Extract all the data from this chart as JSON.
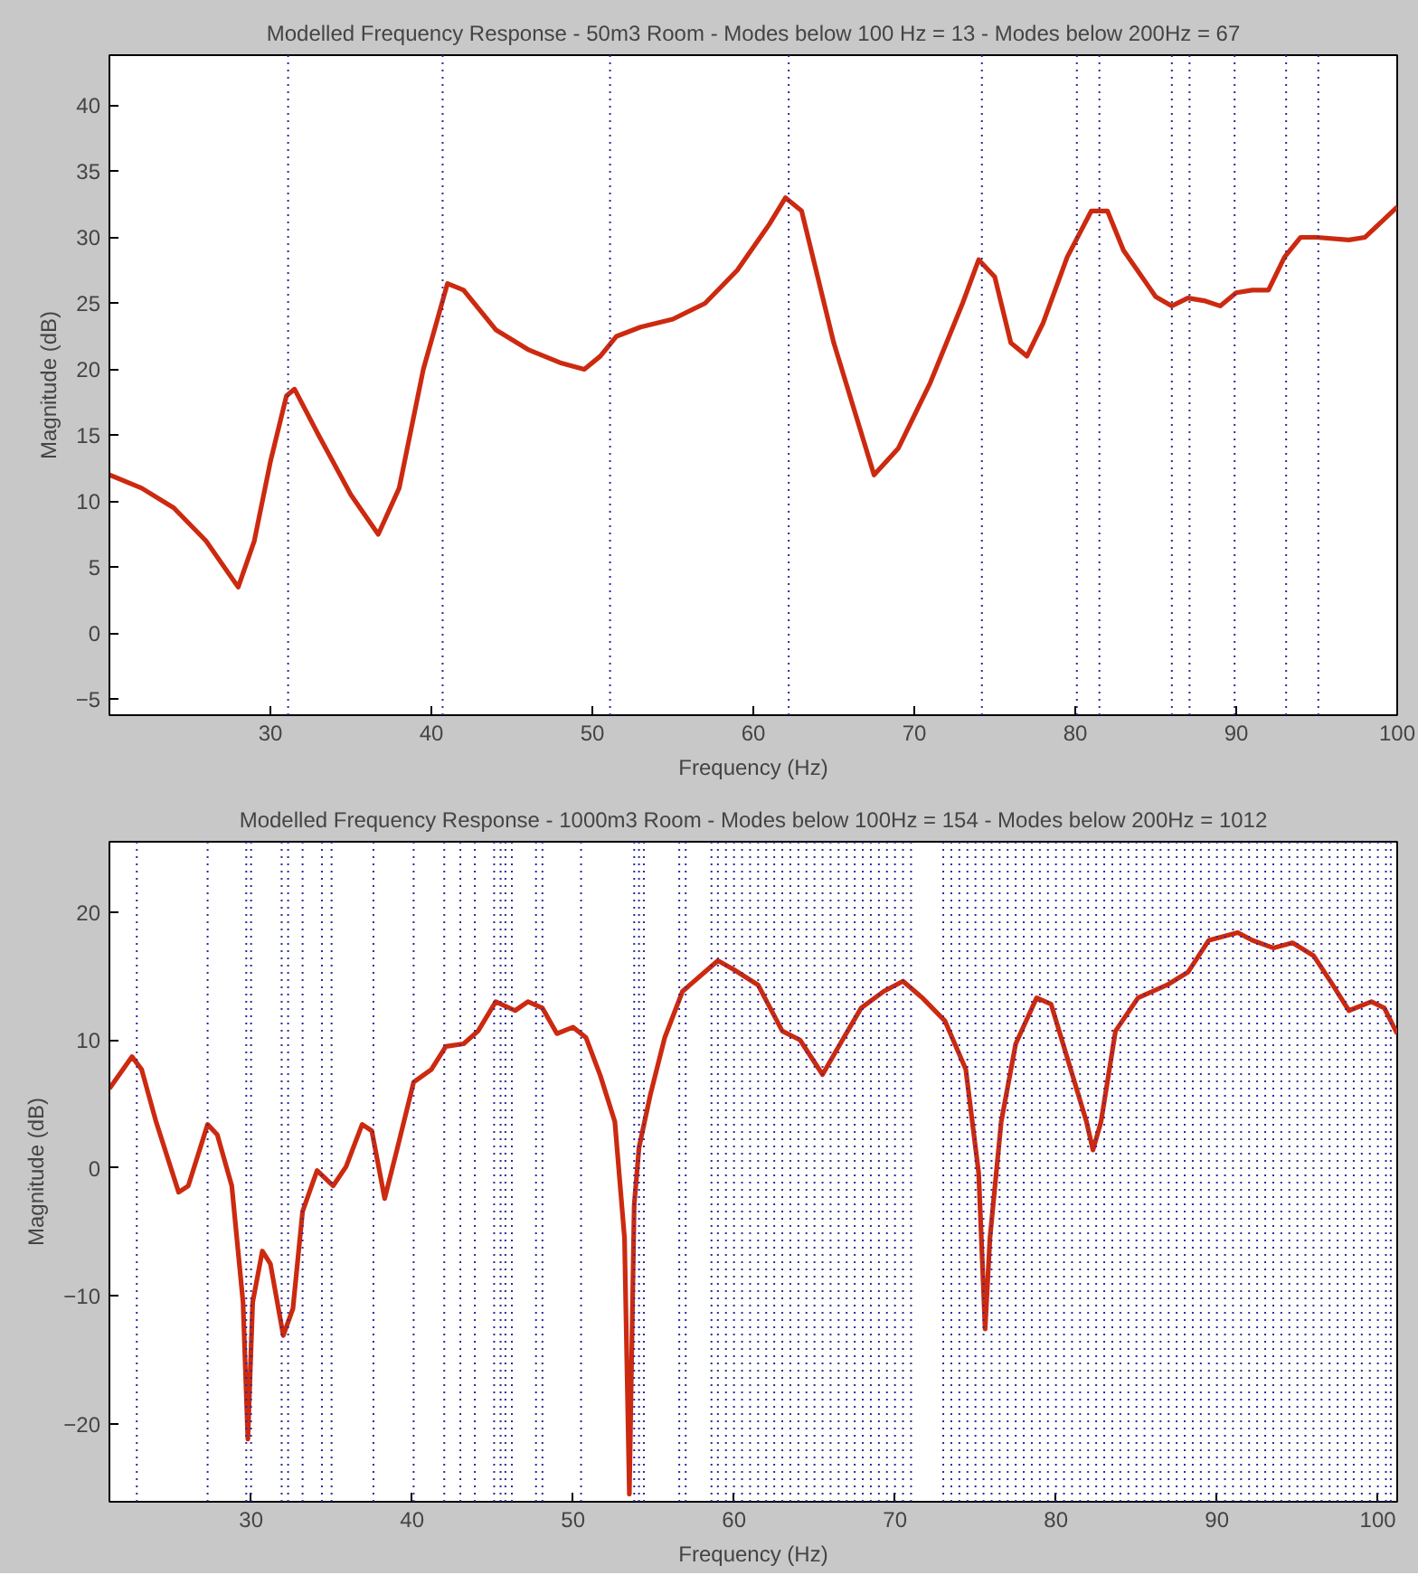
{
  "chart_data": [
    {
      "type": "line",
      "title": "Modelled Frequency Response - 50m3 Room - Modes below 100 Hz = 13 - Modes below 200Hz = 67",
      "xlabel": "Frequency (Hz)",
      "ylabel": "Magnitude (dB)",
      "grid": false,
      "line_style": "solid",
      "x": [
        20,
        22,
        24,
        26,
        28,
        29,
        30,
        31,
        31.5,
        33,
        35,
        36.7,
        38,
        39.5,
        41,
        42,
        44,
        46,
        48,
        49.5,
        50.5,
        51.5,
        53,
        55,
        57,
        59,
        61,
        62,
        63,
        65,
        67.5,
        69,
        71,
        73,
        74,
        75,
        76,
        77,
        78,
        79.5,
        81,
        82,
        83,
        85,
        86,
        87,
        88,
        89,
        90,
        91,
        92,
        93,
        94,
        95,
        97,
        98,
        100
      ],
      "series": [
        {
          "color": "#cc2a10",
          "values": [
            12,
            11,
            9.5,
            7,
            3.5,
            7,
            13,
            18,
            18.5,
            15,
            10.5,
            7.5,
            11,
            20,
            26.5,
            26,
            23,
            21.5,
            20.5,
            20,
            21,
            22.5,
            23.2,
            23.8,
            25,
            27.5,
            31,
            33,
            32,
            22,
            12,
            14,
            19,
            25,
            28.3,
            27,
            22,
            21,
            23.5,
            28.5,
            32,
            32,
            29,
            25.5,
            24.8,
            25.4,
            25.2,
            24.8,
            25.8,
            26,
            26,
            28.5,
            30,
            30,
            29.8,
            30,
            32.3
          ]
        }
      ],
      "xlim": [
        20,
        100
      ],
      "xticks": [
        30,
        40,
        50,
        60,
        70,
        80,
        90,
        100
      ],
      "ylim": [
        -6.2,
        43.8
      ],
      "yticks": [
        -5,
        0,
        5,
        10,
        15,
        20,
        25,
        30,
        35,
        40
      ],
      "ref_lines": [
        {
          "axis": "x",
          "value": 31.1,
          "color": "#2a2a9a",
          "line_style": "dotted"
        },
        {
          "axis": "x",
          "value": 40.7,
          "color": "#2a2a9a",
          "line_style": "dotted"
        },
        {
          "axis": "x",
          "value": 51.1,
          "color": "#2a2a9a",
          "line_style": "dotted"
        },
        {
          "axis": "x",
          "value": 62.2,
          "color": "#2a2a9a",
          "line_style": "dotted"
        },
        {
          "axis": "x",
          "value": 74.2,
          "color": "#2a2a9a",
          "line_style": "dotted"
        },
        {
          "axis": "x",
          "value": 80.1,
          "color": "#2a2a9a",
          "line_style": "dotted"
        },
        {
          "axis": "x",
          "value": 81.5,
          "color": "#2a2a9a",
          "line_style": "dotted"
        },
        {
          "axis": "x",
          "value": 86.0,
          "color": "#2a2a9a",
          "line_style": "dotted"
        },
        {
          "axis": "x",
          "value": 87.1,
          "color": "#2a2a9a",
          "line_style": "dotted"
        },
        {
          "axis": "x",
          "value": 89.9,
          "color": "#2a2a9a",
          "line_style": "dotted"
        },
        {
          "axis": "x",
          "value": 93.1,
          "color": "#2a2a9a",
          "line_style": "dotted"
        },
        {
          "axis": "x",
          "value": 95.1,
          "color": "#2a2a9a",
          "line_style": "dotted"
        }
      ]
    },
    {
      "type": "line",
      "title": "Modelled Frequency Response - 1000m3 Room - Modes below 100Hz = 154 - Modes below 200Hz = 1012",
      "xlabel": "Frequency (Hz)",
      "ylabel": "Magnitude (dB)",
      "grid": false,
      "line_style": "solid",
      "x": [
        21.2,
        22.6,
        23.2,
        24.1,
        25.5,
        26.1,
        27.3,
        27.9,
        28.8,
        29.5,
        29.8,
        30.1,
        30.7,
        31.2,
        32.0,
        32.6,
        33.2,
        34.1,
        35.1,
        35.9,
        36.9,
        37.5,
        38.3,
        39.0,
        40.1,
        41.2,
        42.1,
        43.2,
        44.1,
        45.2,
        46.4,
        47.2,
        48.1,
        49.0,
        50.0,
        50.8,
        51.7,
        52.6,
        53.2,
        53.5,
        53.8,
        54.1,
        54.8,
        55.7,
        56.8,
        57.9,
        59.0,
        60.0,
        61.5,
        63.0,
        64.1,
        65.5,
        66.6,
        67.9,
        69.3,
        70.5,
        71.7,
        73.1,
        74.4,
        75.2,
        75.6,
        75.9,
        76.6,
        77.5,
        78.8,
        79.7,
        80.8,
        81.9,
        82.3,
        82.8,
        83.7,
        85.1,
        86.9,
        88.2,
        89.5,
        91.3,
        92.2,
        93.5,
        94.7,
        96.0,
        97.1,
        98.2,
        99.6,
        100.4,
        101.2
      ],
      "series": [
        {
          "color": "#cc2a10",
          "values": [
            6.2,
            8.7,
            7.7,
            3.6,
            -1.9,
            -1.4,
            3.4,
            2.6,
            -1.4,
            -10.5,
            -21.2,
            -10.5,
            -6.5,
            -7.5,
            -13.1,
            -11,
            -3.4,
            -0.2,
            -1.4,
            0.1,
            3.4,
            2.9,
            -2.4,
            1.1,
            6.7,
            7.7,
            9.5,
            9.7,
            10.7,
            13,
            12.3,
            13,
            12.5,
            10.5,
            11,
            10.2,
            7.2,
            3.6,
            -5.5,
            -25.5,
            -2.9,
            1.6,
            5.7,
            10.2,
            13.8,
            15,
            16.2,
            15.5,
            14.3,
            10.7,
            10,
            7.3,
            9.7,
            12.5,
            13.8,
            14.6,
            13.3,
            11.5,
            7.7,
            -0.4,
            -12.6,
            -5.5,
            3.6,
            9.7,
            13.3,
            12.8,
            8.2,
            3.6,
            1.4,
            3.6,
            10.7,
            13.3,
            14.3,
            15.3,
            17.8,
            18.4,
            17.8,
            17.2,
            17.6,
            16.6,
            14.5,
            12.3,
            13,
            12.5,
            10.5
          ]
        }
      ],
      "xlim": [
        21.2,
        101.2
      ],
      "xticks": [
        30,
        40,
        50,
        60,
        70,
        80,
        90,
        100
      ],
      "ylim": [
        -26.1,
        25.5
      ],
      "yticks": [
        -20,
        -10,
        0,
        10,
        20
      ],
      "ref_lines": [
        {
          "axis": "x",
          "value": 22.9,
          "color": "#2a2a9a",
          "line_style": "dotted"
        },
        {
          "axis": "x",
          "value": 27.3,
          "color": "#2a2a9a",
          "line_style": "dotted"
        },
        {
          "axis": "x",
          "value": 29.7,
          "color": "#2a2a9a",
          "line_style": "dotted"
        },
        {
          "axis": "x",
          "value": 30.0,
          "color": "#2a2a9a",
          "line_style": "dotted"
        },
        {
          "axis": "x",
          "value": 31.9,
          "color": "#2a2a9a",
          "line_style": "dotted"
        },
        {
          "axis": "x",
          "value": 32.3,
          "color": "#2a2a9a",
          "line_style": "dotted"
        },
        {
          "axis": "x",
          "value": 33.2,
          "color": "#2a2a9a",
          "line_style": "dotted"
        },
        {
          "axis": "x",
          "value": 34.4,
          "color": "#2a2a9a",
          "line_style": "dotted"
        },
        {
          "axis": "x",
          "value": 35.0,
          "color": "#2a2a9a",
          "line_style": "dotted"
        },
        {
          "axis": "x",
          "value": 37.6,
          "color": "#2a2a9a",
          "line_style": "dotted"
        },
        {
          "axis": "x",
          "value": 40.1,
          "color": "#2a2a9a",
          "line_style": "dotted"
        },
        {
          "axis": "x",
          "value": 42.0,
          "color": "#2a2a9a",
          "line_style": "dotted"
        },
        {
          "axis": "x",
          "value": 43.0,
          "color": "#2a2a9a",
          "line_style": "dotted"
        },
        {
          "axis": "x",
          "value": 43.9,
          "color": "#2a2a9a",
          "line_style": "dotted"
        },
        {
          "axis": "x",
          "value": 45.1,
          "color": "#2a2a9a",
          "line_style": "dotted"
        },
        {
          "axis": "x",
          "value": 45.5,
          "color": "#2a2a9a",
          "line_style": "dotted"
        },
        {
          "axis": "x",
          "value": 45.8,
          "color": "#2a2a9a",
          "line_style": "dotted"
        },
        {
          "axis": "x",
          "value": 46.2,
          "color": "#2a2a9a",
          "line_style": "dotted"
        },
        {
          "axis": "x",
          "value": 47.7,
          "color": "#2a2a9a",
          "line_style": "dotted"
        },
        {
          "axis": "x",
          "value": 48.1,
          "color": "#2a2a9a",
          "line_style": "dotted"
        },
        {
          "axis": "x",
          "value": 50.5,
          "color": "#2a2a9a",
          "line_style": "dotted"
        },
        {
          "axis": "x",
          "value": 53.8,
          "color": "#2a2a9a",
          "line_style": "dotted"
        },
        {
          "axis": "x",
          "value": 54.1,
          "color": "#2a2a9a",
          "line_style": "dotted"
        },
        {
          "axis": "x",
          "value": 54.4,
          "color": "#2a2a9a",
          "line_style": "dotted"
        },
        {
          "axis": "x",
          "value": 56.6,
          "color": "#2a2a9a",
          "line_style": "dotted"
        },
        {
          "axis": "x",
          "value": 57.0,
          "color": "#2a2a9a",
          "line_style": "dotted"
        },
        {
          "axis": "x",
          "value": 58.6,
          "color": "#2a2a9a",
          "line_style": "dotted"
        },
        {
          "axis": "x",
          "value": 59.0,
          "color": "#2a2a9a",
          "line_style": "dotted"
        },
        {
          "axis": "x",
          "value": 59.5,
          "color": "#2a2a9a",
          "line_style": "dotted"
        },
        {
          "axis": "x",
          "value": 60.0,
          "color": "#2a2a9a",
          "line_style": "dotted"
        },
        {
          "axis": "x",
          "value": 60.5,
          "color": "#2a2a9a",
          "line_style": "dotted"
        },
        {
          "axis": "x",
          "value": 61.0,
          "color": "#2a2a9a",
          "line_style": "dotted"
        },
        {
          "axis": "x",
          "value": 61.5,
          "color": "#2a2a9a",
          "line_style": "dotted"
        },
        {
          "axis": "x",
          "value": 62.0,
          "color": "#2a2a9a",
          "line_style": "dotted"
        },
        {
          "axis": "x",
          "value": 62.5,
          "color": "#2a2a9a",
          "line_style": "dotted"
        },
        {
          "axis": "x",
          "value": 63.0,
          "color": "#2a2a9a",
          "line_style": "dotted"
        },
        {
          "axis": "x",
          "value": 63.5,
          "color": "#2a2a9a",
          "line_style": "dotted"
        },
        {
          "axis": "x",
          "value": 64.0,
          "color": "#2a2a9a",
          "line_style": "dotted"
        },
        {
          "axis": "x",
          "value": 64.5,
          "color": "#2a2a9a",
          "line_style": "dotted"
        },
        {
          "axis": "x",
          "value": 65.0,
          "color": "#2a2a9a",
          "line_style": "dotted"
        },
        {
          "axis": "x",
          "value": 65.5,
          "color": "#2a2a9a",
          "line_style": "dotted"
        },
        {
          "axis": "x",
          "value": 66.0,
          "color": "#2a2a9a",
          "line_style": "dotted"
        },
        {
          "axis": "x",
          "value": 66.5,
          "color": "#2a2a9a",
          "line_style": "dotted"
        },
        {
          "axis": "x",
          "value": 67.0,
          "color": "#2a2a9a",
          "line_style": "dotted"
        },
        {
          "axis": "x",
          "value": 67.5,
          "color": "#2a2a9a",
          "line_style": "dotted"
        },
        {
          "axis": "x",
          "value": 68.0,
          "color": "#2a2a9a",
          "line_style": "dotted"
        },
        {
          "axis": "x",
          "value": 68.5,
          "color": "#2a2a9a",
          "line_style": "dotted"
        },
        {
          "axis": "x",
          "value": 69.0,
          "color": "#2a2a9a",
          "line_style": "dotted"
        },
        {
          "axis": "x",
          "value": 69.5,
          "color": "#2a2a9a",
          "line_style": "dotted"
        },
        {
          "axis": "x",
          "value": 70.0,
          "color": "#2a2a9a",
          "line_style": "dotted"
        },
        {
          "axis": "x",
          "value": 70.5,
          "color": "#2a2a9a",
          "line_style": "dotted"
        },
        {
          "axis": "x",
          "value": 71.0,
          "color": "#2a2a9a",
          "line_style": "dotted"
        },
        {
          "axis": "x",
          "value": 73.0,
          "color": "#2a2a9a",
          "line_style": "dotted"
        },
        {
          "axis": "x",
          "value": 73.5,
          "color": "#2a2a9a",
          "line_style": "dotted"
        },
        {
          "axis": "x",
          "value": 74.0,
          "color": "#2a2a9a",
          "line_style": "dotted"
        },
        {
          "axis": "x",
          "value": 74.5,
          "color": "#2a2a9a",
          "line_style": "dotted"
        },
        {
          "axis": "x",
          "value": 75.0,
          "color": "#2a2a9a",
          "line_style": "dotted"
        },
        {
          "axis": "x",
          "value": 75.5,
          "color": "#2a2a9a",
          "line_style": "dotted"
        },
        {
          "axis": "x",
          "value": 76.0,
          "color": "#2a2a9a",
          "line_style": "dotted"
        },
        {
          "axis": "x",
          "value": 76.5,
          "color": "#2a2a9a",
          "line_style": "dotted"
        },
        {
          "axis": "x",
          "value": 77.0,
          "color": "#2a2a9a",
          "line_style": "dotted"
        },
        {
          "axis": "x",
          "value": 77.5,
          "color": "#2a2a9a",
          "line_style": "dotted"
        },
        {
          "axis": "x",
          "value": 78.0,
          "color": "#2a2a9a",
          "line_style": "dotted"
        },
        {
          "axis": "x",
          "value": 78.5,
          "color": "#2a2a9a",
          "line_style": "dotted"
        },
        {
          "axis": "x",
          "value": 79.0,
          "color": "#2a2a9a",
          "line_style": "dotted"
        },
        {
          "axis": "x",
          "value": 79.5,
          "color": "#2a2a9a",
          "line_style": "dotted"
        },
        {
          "axis": "x",
          "value": 80.0,
          "color": "#2a2a9a",
          "line_style": "dotted"
        },
        {
          "axis": "x",
          "value": 80.5,
          "color": "#2a2a9a",
          "line_style": "dotted"
        },
        {
          "axis": "x",
          "value": 81.0,
          "color": "#2a2a9a",
          "line_style": "dotted"
        },
        {
          "axis": "x",
          "value": 81.5,
          "color": "#2a2a9a",
          "line_style": "dotted"
        },
        {
          "axis": "x",
          "value": 82.0,
          "color": "#2a2a9a",
          "line_style": "dotted"
        },
        {
          "axis": "x",
          "value": 82.5,
          "color": "#2a2a9a",
          "line_style": "dotted"
        },
        {
          "axis": "x",
          "value": 83.0,
          "color": "#2a2a9a",
          "line_style": "dotted"
        },
        {
          "axis": "x",
          "value": 83.5,
          "color": "#2a2a9a",
          "line_style": "dotted"
        },
        {
          "axis": "x",
          "value": 84.0,
          "color": "#2a2a9a",
          "line_style": "dotted"
        },
        {
          "axis": "x",
          "value": 84.5,
          "color": "#2a2a9a",
          "line_style": "dotted"
        },
        {
          "axis": "x",
          "value": 85.0,
          "color": "#2a2a9a",
          "line_style": "dotted"
        },
        {
          "axis": "x",
          "value": 85.5,
          "color": "#2a2a9a",
          "line_style": "dotted"
        },
        {
          "axis": "x",
          "value": 86.0,
          "color": "#2a2a9a",
          "line_style": "dotted"
        },
        {
          "axis": "x",
          "value": 86.5,
          "color": "#2a2a9a",
          "line_style": "dotted"
        },
        {
          "axis": "x",
          "value": 87.0,
          "color": "#2a2a9a",
          "line_style": "dotted"
        },
        {
          "axis": "x",
          "value": 87.5,
          "color": "#2a2a9a",
          "line_style": "dotted"
        },
        {
          "axis": "x",
          "value": 88.0,
          "color": "#2a2a9a",
          "line_style": "dotted"
        },
        {
          "axis": "x",
          "value": 88.5,
          "color": "#2a2a9a",
          "line_style": "dotted"
        },
        {
          "axis": "x",
          "value": 89.0,
          "color": "#2a2a9a",
          "line_style": "dotted"
        },
        {
          "axis": "x",
          "value": 89.5,
          "color": "#2a2a9a",
          "line_style": "dotted"
        },
        {
          "axis": "x",
          "value": 90.0,
          "color": "#2a2a9a",
          "line_style": "dotted"
        },
        {
          "axis": "x",
          "value": 90.5,
          "color": "#2a2a9a",
          "line_style": "dotted"
        },
        {
          "axis": "x",
          "value": 91.0,
          "color": "#2a2a9a",
          "line_style": "dotted"
        },
        {
          "axis": "x",
          "value": 91.5,
          "color": "#2a2a9a",
          "line_style": "dotted"
        },
        {
          "axis": "x",
          "value": 92.0,
          "color": "#2a2a9a",
          "line_style": "dotted"
        },
        {
          "axis": "x",
          "value": 92.5,
          "color": "#2a2a9a",
          "line_style": "dotted"
        },
        {
          "axis": "x",
          "value": 93.0,
          "color": "#2a2a9a",
          "line_style": "dotted"
        },
        {
          "axis": "x",
          "value": 93.5,
          "color": "#2a2a9a",
          "line_style": "dotted"
        },
        {
          "axis": "x",
          "value": 94.0,
          "color": "#2a2a9a",
          "line_style": "dotted"
        },
        {
          "axis": "x",
          "value": 94.5,
          "color": "#2a2a9a",
          "line_style": "dotted"
        },
        {
          "axis": "x",
          "value": 95.0,
          "color": "#2a2a9a",
          "line_style": "dotted"
        },
        {
          "axis": "x",
          "value": 95.5,
          "color": "#2a2a9a",
          "line_style": "dotted"
        },
        {
          "axis": "x",
          "value": 96.0,
          "color": "#2a2a9a",
          "line_style": "dotted"
        },
        {
          "axis": "x",
          "value": 96.5,
          "color": "#2a2a9a",
          "line_style": "dotted"
        },
        {
          "axis": "x",
          "value": 97.0,
          "color": "#2a2a9a",
          "line_style": "dotted"
        },
        {
          "axis": "x",
          "value": 97.5,
          "color": "#2a2a9a",
          "line_style": "dotted"
        },
        {
          "axis": "x",
          "value": 98.0,
          "color": "#2a2a9a",
          "line_style": "dotted"
        },
        {
          "axis": "x",
          "value": 98.5,
          "color": "#2a2a9a",
          "line_style": "dotted"
        },
        {
          "axis": "x",
          "value": 99.0,
          "color": "#2a2a9a",
          "line_style": "dotted"
        },
        {
          "axis": "x",
          "value": 99.5,
          "color": "#2a2a9a",
          "line_style": "dotted"
        },
        {
          "axis": "x",
          "value": 100.0,
          "color": "#2a2a9a",
          "line_style": "dotted"
        },
        {
          "axis": "x",
          "value": 100.5,
          "color": "#2a2a9a",
          "line_style": "dotted"
        },
        {
          "axis": "x",
          "value": 100.8,
          "color": "#2a2a9a",
          "line_style": "dotted"
        }
      ]
    }
  ]
}
